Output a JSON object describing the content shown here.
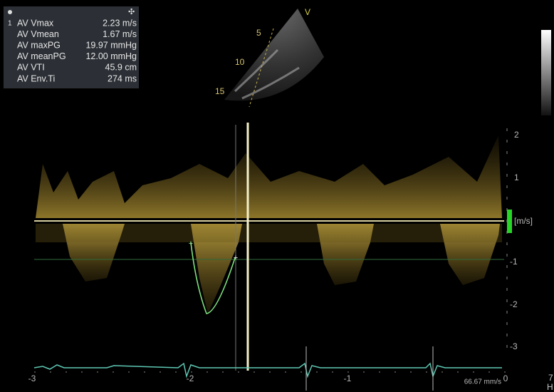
{
  "measurements": {
    "marker": "1",
    "rows": [
      {
        "label": "AV Vmax",
        "value": "2.23 m/s"
      },
      {
        "label": "AV Vmean",
        "value": "1.67 m/s"
      },
      {
        "label": "AV maxPG",
        "value": "19.97 mmHg"
      },
      {
        "label": "AV meanPG",
        "value": "12.00 mmHg"
      },
      {
        "label": "AV VTI",
        "value": "45.9 cm"
      },
      {
        "label": "AV Env.Ti",
        "value": "274 ms"
      }
    ]
  },
  "sector": {
    "marker": "V",
    "depths": [
      "5",
      "10",
      "15"
    ]
  },
  "velocity_axis": {
    "ticks": [
      "2",
      "1",
      "-1",
      "-2",
      "-3"
    ],
    "unit": "[m/s]"
  },
  "time_axis": {
    "ticks": [
      "-3",
      "-2",
      "-1",
      "0"
    ]
  },
  "sweep_speed": "66.67 mm/s",
  "edge_labels": [
    "7",
    "H"
  ]
}
